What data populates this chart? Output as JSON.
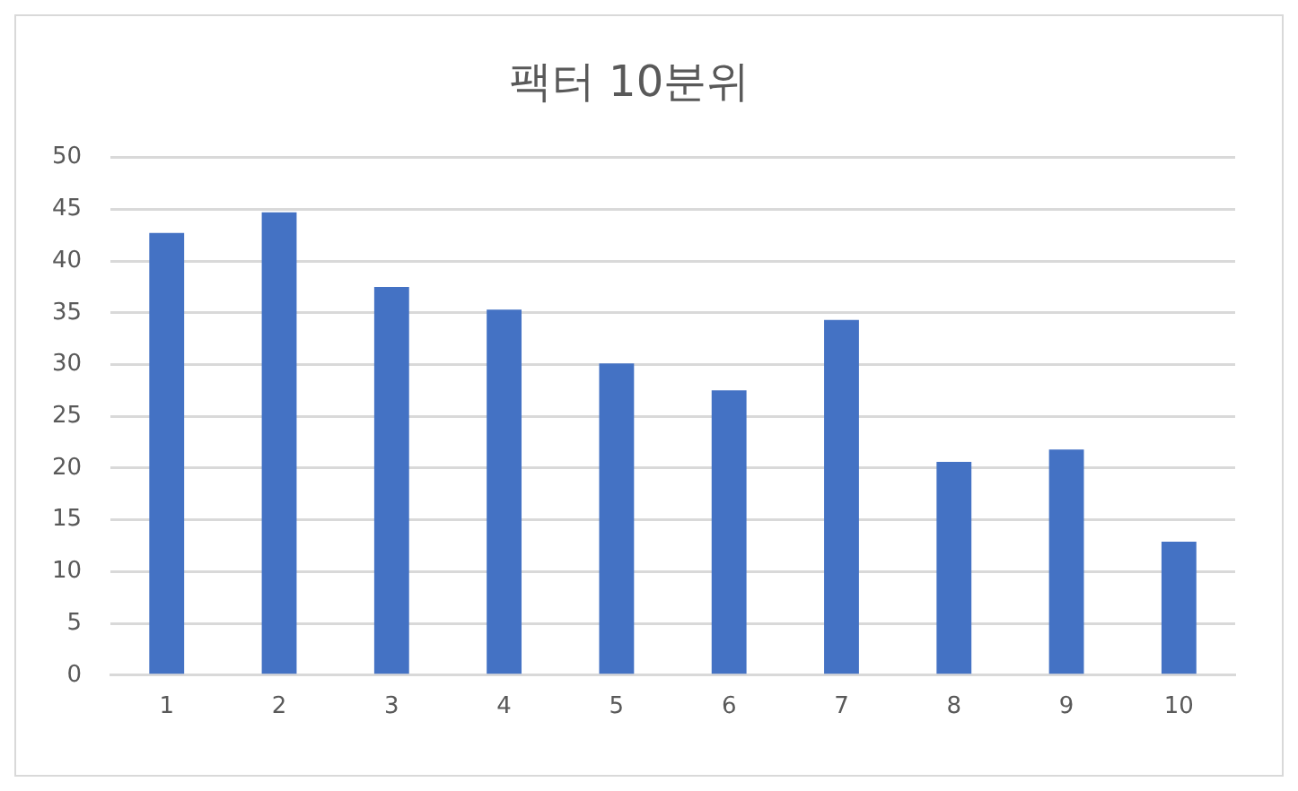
{
  "chart_data": {
    "type": "bar",
    "title": "팩터 10분위",
    "categories": [
      "1",
      "2",
      "3",
      "4",
      "5",
      "6",
      "7",
      "8",
      "9",
      "10"
    ],
    "values": [
      42.7,
      44.7,
      37.5,
      35.3,
      30.1,
      27.5,
      34.3,
      20.6,
      21.8,
      12.9
    ],
    "color": "#4472c4",
    "ylim": [
      0,
      50
    ],
    "yticks": [
      0,
      5,
      10,
      15,
      20,
      25,
      30,
      35,
      40,
      45,
      50
    ],
    "grid": "y",
    "legend": false
  }
}
